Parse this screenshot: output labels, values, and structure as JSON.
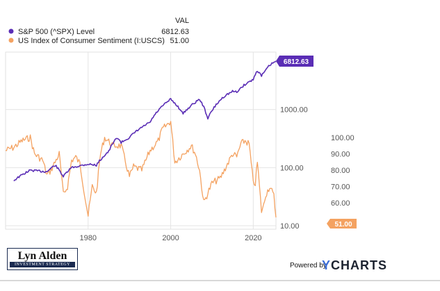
{
  "chart_data": {
    "type": "line",
    "x_ticks": [
      "1980",
      "2000",
      "2020"
    ],
    "value_header": "VAL",
    "series": [
      {
        "name": "S&P 500 (^SPX) Level",
        "value": "6812.63",
        "color": "#5a2db5",
        "scale": "log",
        "axis_ticks": [
          "1000.00",
          "100.00",
          "10.00"
        ],
        "x": [
          1962,
          1966,
          1970,
          1972,
          1974,
          1976,
          1980,
          1982,
          1985,
          1987,
          1988,
          1990,
          1995,
          2000,
          2003,
          2007,
          2009,
          2013,
          2015,
          2016,
          2018,
          2020,
          2021,
          2022,
          2023,
          2024,
          2025.5
        ],
        "values": [
          60,
          90,
          85,
          110,
          70,
          100,
          115,
          110,
          190,
          330,
          270,
          330,
          600,
          1500,
          850,
          1500,
          700,
          1700,
          2050,
          2000,
          2700,
          3300,
          4700,
          3800,
          4700,
          5800,
          6812.63
        ]
      },
      {
        "name": "US Index of Consumer Sentiment (I:USCS)",
        "value": "51.00",
        "color": "#f4a261",
        "scale": "linear",
        "axis_ticks": [
          "100.00",
          "90.00",
          "80.00",
          "70.00",
          "60.00"
        ],
        "x": [
          1960,
          1962,
          1964,
          1966,
          1967,
          1969,
          1970,
          1971,
          1973,
          1974,
          1975,
          1976,
          1977,
          1978,
          1979,
          1980,
          1981,
          1982,
          1983,
          1984,
          1986,
          1988,
          1990,
          1991,
          1993,
          1995,
          1997,
          1998,
          2000,
          2001,
          2003,
          2005,
          2006,
          2007,
          2008,
          2009,
          2010,
          2012,
          2013,
          2015,
          2016,
          2017,
          2018,
          2019,
          2020,
          2020.5,
          2021,
          2021.5,
          2022,
          2022.5,
          2023,
          2024,
          2025,
          2025.5
        ],
        "values": [
          92,
          94,
          98,
          100,
          90,
          86,
          77,
          80,
          90,
          65,
          70,
          86,
          88,
          84,
          68,
          52,
          70,
          66,
          90,
          100,
          95,
          95,
          76,
          82,
          80,
          92,
          98,
          105,
          110,
          85,
          90,
          95,
          90,
          80,
          60,
          66,
          72,
          75,
          80,
          90,
          88,
          96,
          98,
          96,
          72,
          72,
          85,
          70,
          55,
          58,
          65,
          70,
          64,
          51
        ]
      }
    ]
  },
  "branding": {
    "logo_name": "Lyn Alden",
    "logo_tagline": "INVESTMENT STRATEGY",
    "powered_by": "Powered by",
    "ycharts_y": "Y",
    "ycharts_rest": "CHARTS"
  }
}
